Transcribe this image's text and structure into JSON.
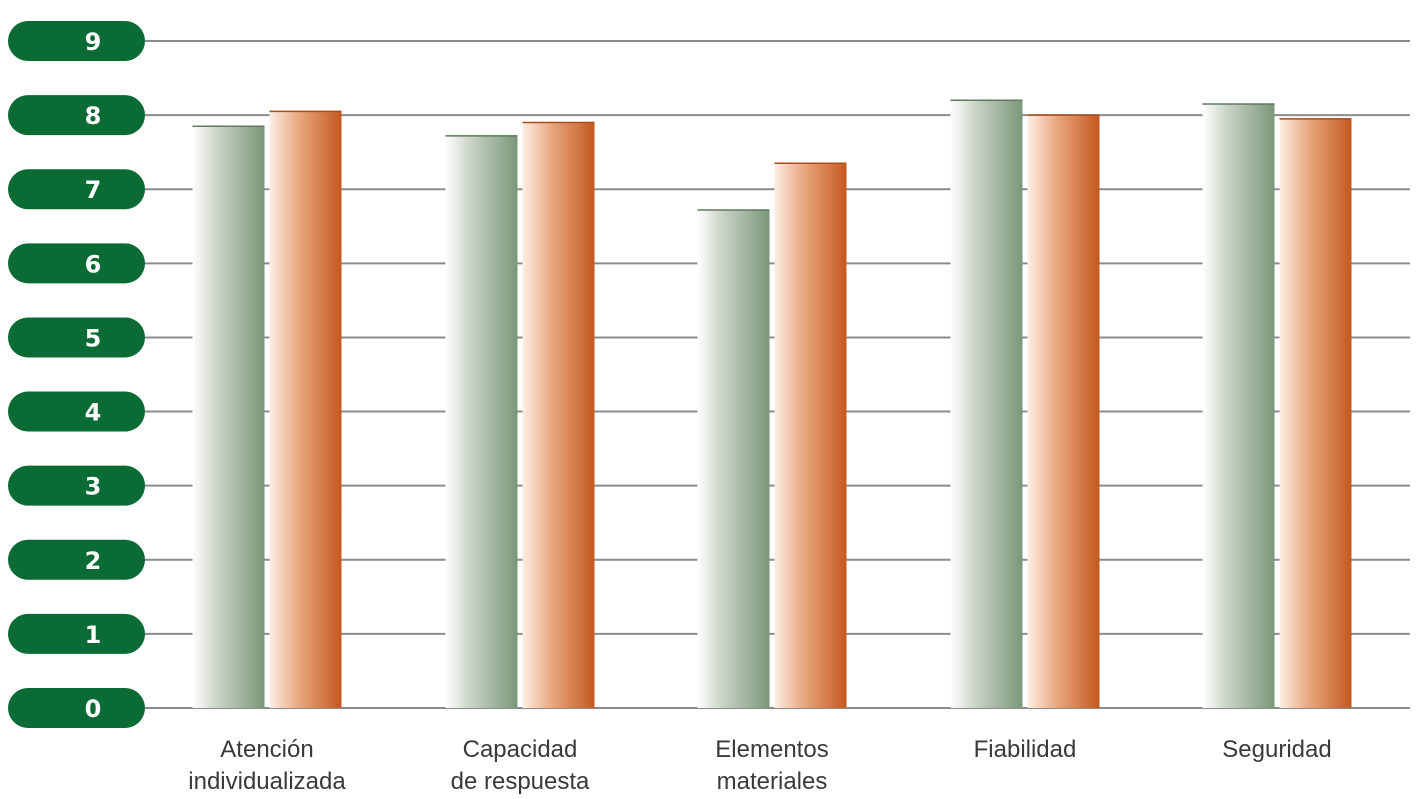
{
  "chart_data": {
    "type": "bar",
    "title": "",
    "xlabel": "",
    "ylabel": "",
    "ylim": [
      0,
      9
    ],
    "yticks": [
      "0",
      "1",
      "2",
      "3",
      "4",
      "5",
      "6",
      "7",
      "8",
      "9"
    ],
    "grid": true,
    "categories": [
      [
        "Atención",
        "individualizada"
      ],
      [
        "Capacidad",
        "de respuesta"
      ],
      [
        "Elementos",
        "materiales"
      ],
      [
        "Fiabilidad"
      ],
      [
        "Seguridad"
      ]
    ],
    "series": [
      {
        "values": [
          7.85,
          7.72,
          6.72,
          8.2,
          8.15
        ],
        "color": "#7f9a7e"
      },
      {
        "values": [
          8.05,
          7.9,
          7.35,
          8.0,
          7.95
        ],
        "color": "#c8612a"
      }
    ],
    "colors": {
      "tick_pill": "#0b6b34",
      "grid": "#8c8c8c"
    }
  }
}
